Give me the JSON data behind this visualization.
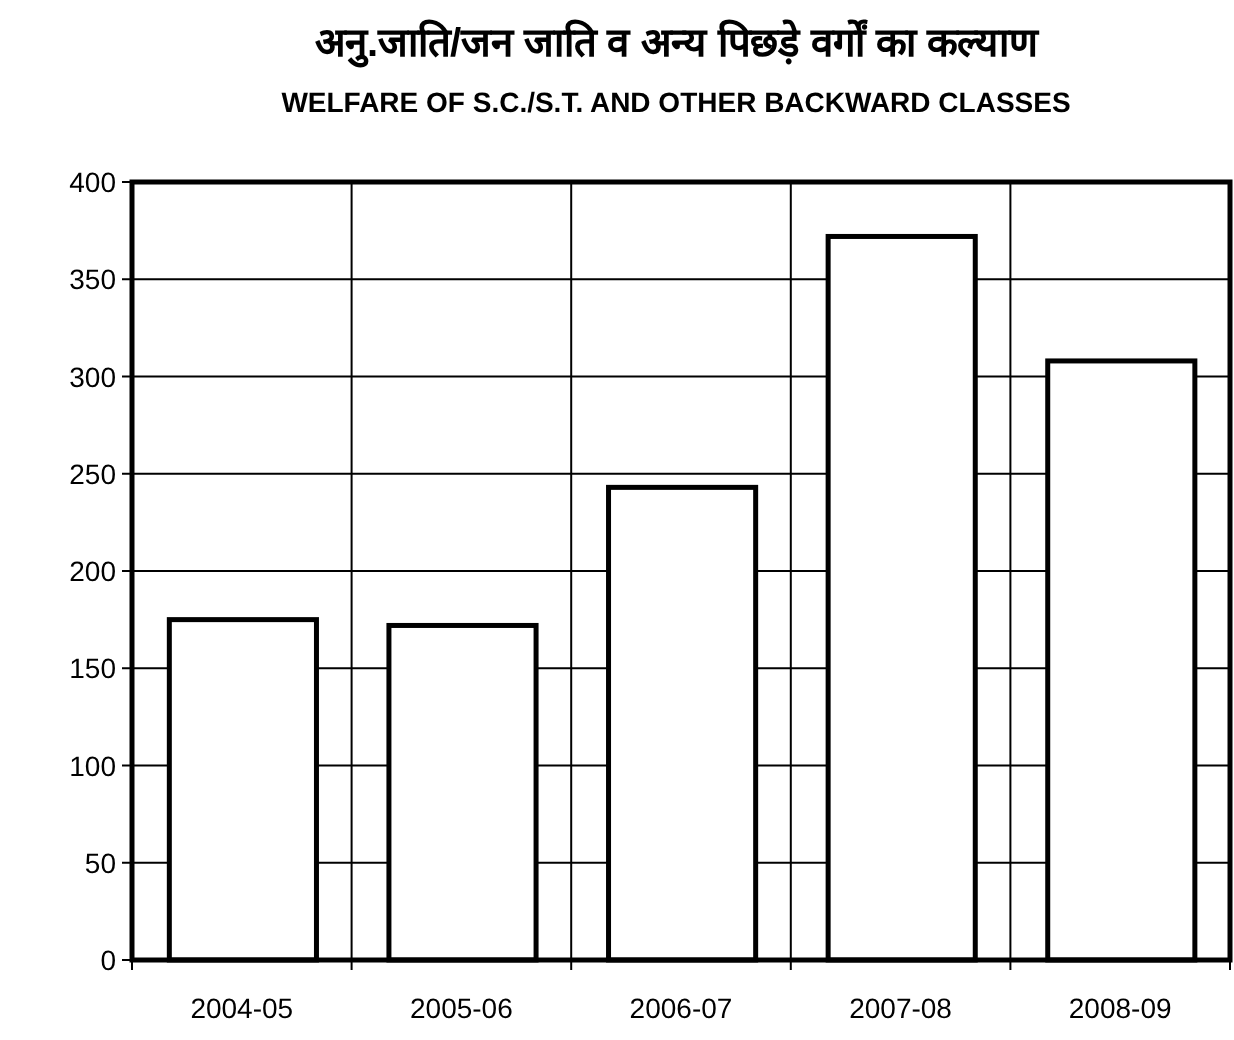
{
  "chart_data": {
    "type": "bar",
    "title": "अनु.जाति/जन जाति व अन्य पिछड़े वर्गों का कल्याण",
    "subtitle": "WELFARE OF S.C./S.T. AND OTHER BACKWARD CLASSES",
    "categories": [
      "2004-05",
      "2005-06",
      "2006-07",
      "2007-08",
      "2008-09"
    ],
    "values": [
      175,
      172,
      243,
      372,
      308
    ],
    "color": "#ffffff",
    "ylim": [
      0,
      400
    ],
    "yticks": [
      0,
      50,
      100,
      150,
      200,
      250,
      300,
      350,
      400
    ],
    "grid": true
  }
}
